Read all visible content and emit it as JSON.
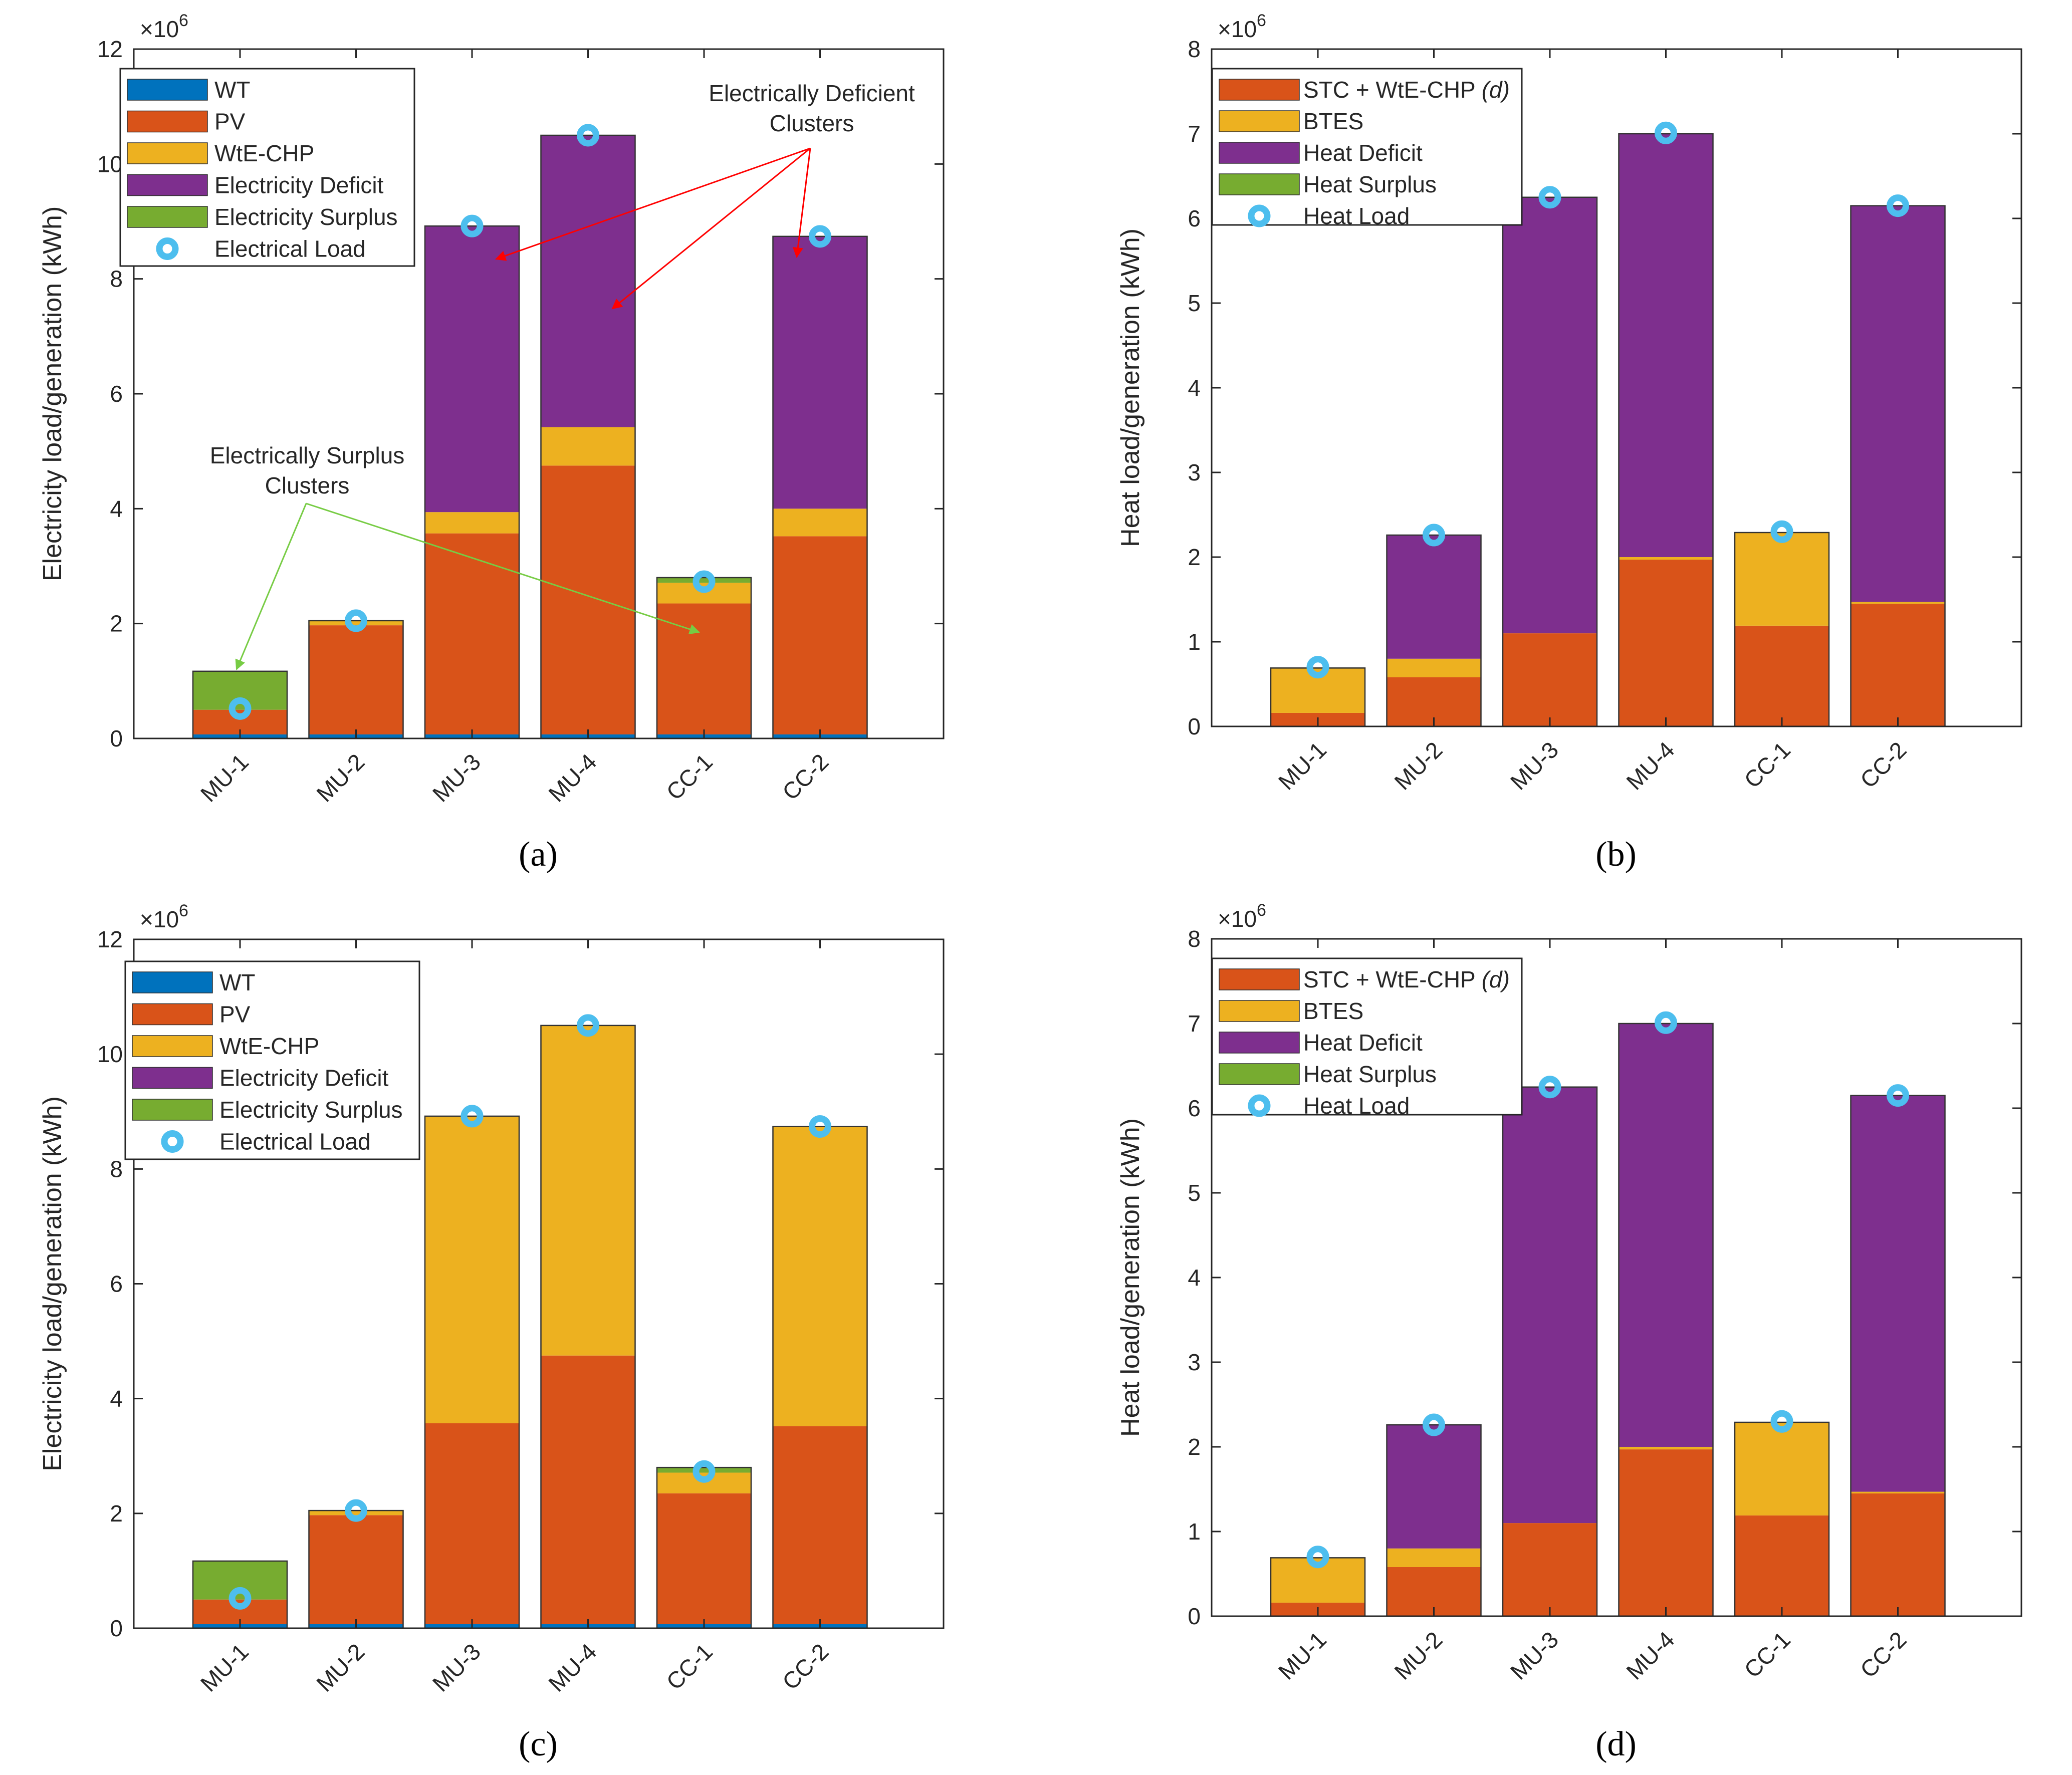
{
  "chart_data": [
    {
      "type": "bar",
      "stacked": true,
      "panel_label": "(a)",
      "ylabel": "Electricity load/generation (kWh)",
      "xlabel": "",
      "exponent_label": "×10",
      "exponent_power": "6",
      "ylim": [
        0,
        12
      ],
      "yticks": [
        0,
        2,
        4,
        6,
        8,
        10,
        12
      ],
      "categories": [
        "MU-1",
        "MU-2",
        "MU-3",
        "MU-4",
        "CC-1",
        "CC-2"
      ],
      "series": [
        {
          "name": "WT",
          "color": "#0072BD",
          "values": [
            0.07,
            0.07,
            0.07,
            0.07,
            0.07,
            0.07
          ]
        },
        {
          "name": "PV",
          "color": "#D95319",
          "values": [
            0.43,
            1.9,
            3.5,
            4.68,
            2.28,
            3.45
          ]
        },
        {
          "name": "WtE-CHP",
          "color": "#EDB120",
          "values": [
            0,
            0.08,
            0.37,
            0.67,
            0.36,
            0.48
          ]
        },
        {
          "name": "Electricity Deficit",
          "color": "#7E2F8E",
          "values": [
            0,
            0,
            4.98,
            5.08,
            0,
            4.74
          ]
        },
        {
          "name": "Electricity Surplus",
          "color": "#77AC30",
          "values": [
            0.67,
            0,
            0,
            0,
            0.09,
            0
          ]
        }
      ],
      "load": {
        "name": "Electrical Load",
        "color": "#4DBEEE",
        "values": [
          0.52,
          2.05,
          8.92,
          10.5,
          2.73,
          8.74
        ]
      },
      "legend_position": "top-left",
      "annotations": [
        {
          "text_lines": [
            "Electrically Deficient",
            "Clusters"
          ],
          "color": "#FF0000"
        },
        {
          "text_lines": [
            "Electrically Surplus",
            "Clusters"
          ],
          "color": "#77CC44"
        }
      ]
    },
    {
      "type": "bar",
      "stacked": true,
      "panel_label": "(b)",
      "ylabel": "Heat load/generation (kWh)",
      "xlabel": "",
      "exponent_label": "×10",
      "exponent_power": "6",
      "ylim": [
        0,
        8
      ],
      "yticks": [
        0,
        1,
        2,
        3,
        4,
        5,
        6,
        7,
        8
      ],
      "categories": [
        "MU-1",
        "MU-2",
        "MU-3",
        "MU-4",
        "CC-1",
        "CC-2"
      ],
      "series": [
        {
          "name": "STC + WtE-CHP",
          "name_suffix": "(d)",
          "color": "#D95319",
          "values": [
            0.16,
            0.58,
            1.1,
            1.97,
            1.19,
            1.45
          ]
        },
        {
          "name": "BTES",
          "color": "#EDB120",
          "values": [
            0.53,
            0.22,
            0,
            0.03,
            1.1,
            0.02
          ]
        },
        {
          "name": "Heat Deficit",
          "color": "#7E2F8E",
          "values": [
            0,
            1.46,
            5.15,
            5.0,
            0,
            4.68
          ]
        },
        {
          "name": "Heat Surplus",
          "color": "#77AC30",
          "values": [
            0,
            0,
            0,
            0,
            0,
            0
          ]
        }
      ],
      "load": {
        "name": "Heat Load",
        "color": "#4DBEEE",
        "values": [
          0.7,
          2.26,
          6.25,
          7.01,
          2.3,
          6.15
        ]
      },
      "legend_position": "top-left"
    },
    {
      "type": "bar",
      "stacked": true,
      "panel_label": "(c)",
      "ylabel": "Electricity load/generation (kWh)",
      "xlabel": "",
      "exponent_label": "×10",
      "exponent_power": "6",
      "ylim": [
        0,
        12
      ],
      "yticks": [
        0,
        2,
        4,
        6,
        8,
        10,
        12
      ],
      "categories": [
        "MU-1",
        "MU-2",
        "MU-3",
        "MU-4",
        "CC-1",
        "CC-2"
      ],
      "series": [
        {
          "name": "WT",
          "color": "#0072BD",
          "values": [
            0.07,
            0.07,
            0.07,
            0.07,
            0.07,
            0.07
          ]
        },
        {
          "name": "PV",
          "color": "#D95319",
          "values": [
            0.43,
            1.9,
            3.5,
            4.68,
            2.28,
            3.45
          ]
        },
        {
          "name": "WtE-CHP",
          "color": "#EDB120",
          "values": [
            0,
            0.08,
            5.35,
            5.75,
            0.36,
            5.22
          ]
        },
        {
          "name": "Electricity Deficit",
          "color": "#7E2F8E",
          "values": [
            0,
            0,
            0,
            0,
            0,
            0
          ]
        },
        {
          "name": "Electricity Surplus",
          "color": "#77AC30",
          "values": [
            0.67,
            0,
            0,
            0,
            0.09,
            0
          ]
        }
      ],
      "load": {
        "name": "Electrical Load",
        "color": "#4DBEEE",
        "values": [
          0.52,
          2.05,
          8.92,
          10.5,
          2.73,
          8.74
        ]
      },
      "legend_position": "top-left"
    },
    {
      "type": "bar",
      "stacked": true,
      "panel_label": "(d)",
      "ylabel": "Heat load/generation (kWh)",
      "xlabel": "",
      "exponent_label": "×10",
      "exponent_power": "6",
      "ylim": [
        0,
        8
      ],
      "yticks": [
        0,
        1,
        2,
        3,
        4,
        5,
        6,
        7,
        8
      ],
      "categories": [
        "MU-1",
        "MU-2",
        "MU-3",
        "MU-4",
        "CC-1",
        "CC-2"
      ],
      "series": [
        {
          "name": "STC + WtE-CHP",
          "name_suffix": "(d)",
          "color": "#D95319",
          "values": [
            0.16,
            0.58,
            1.1,
            1.97,
            1.19,
            1.45
          ]
        },
        {
          "name": "BTES",
          "color": "#EDB120",
          "values": [
            0.53,
            0.22,
            0,
            0.03,
            1.1,
            0.02
          ]
        },
        {
          "name": "Heat Deficit",
          "color": "#7E2F8E",
          "values": [
            0,
            1.46,
            5.15,
            5.0,
            0,
            4.68
          ]
        },
        {
          "name": "Heat Surplus",
          "color": "#77AC30",
          "values": [
            0,
            0,
            0,
            0,
            0,
            0
          ]
        }
      ],
      "load": {
        "name": "Heat Load",
        "color": "#4DBEEE",
        "values": [
          0.7,
          2.26,
          6.25,
          7.01,
          2.3,
          6.15
        ]
      },
      "legend_position": "top-left"
    }
  ]
}
